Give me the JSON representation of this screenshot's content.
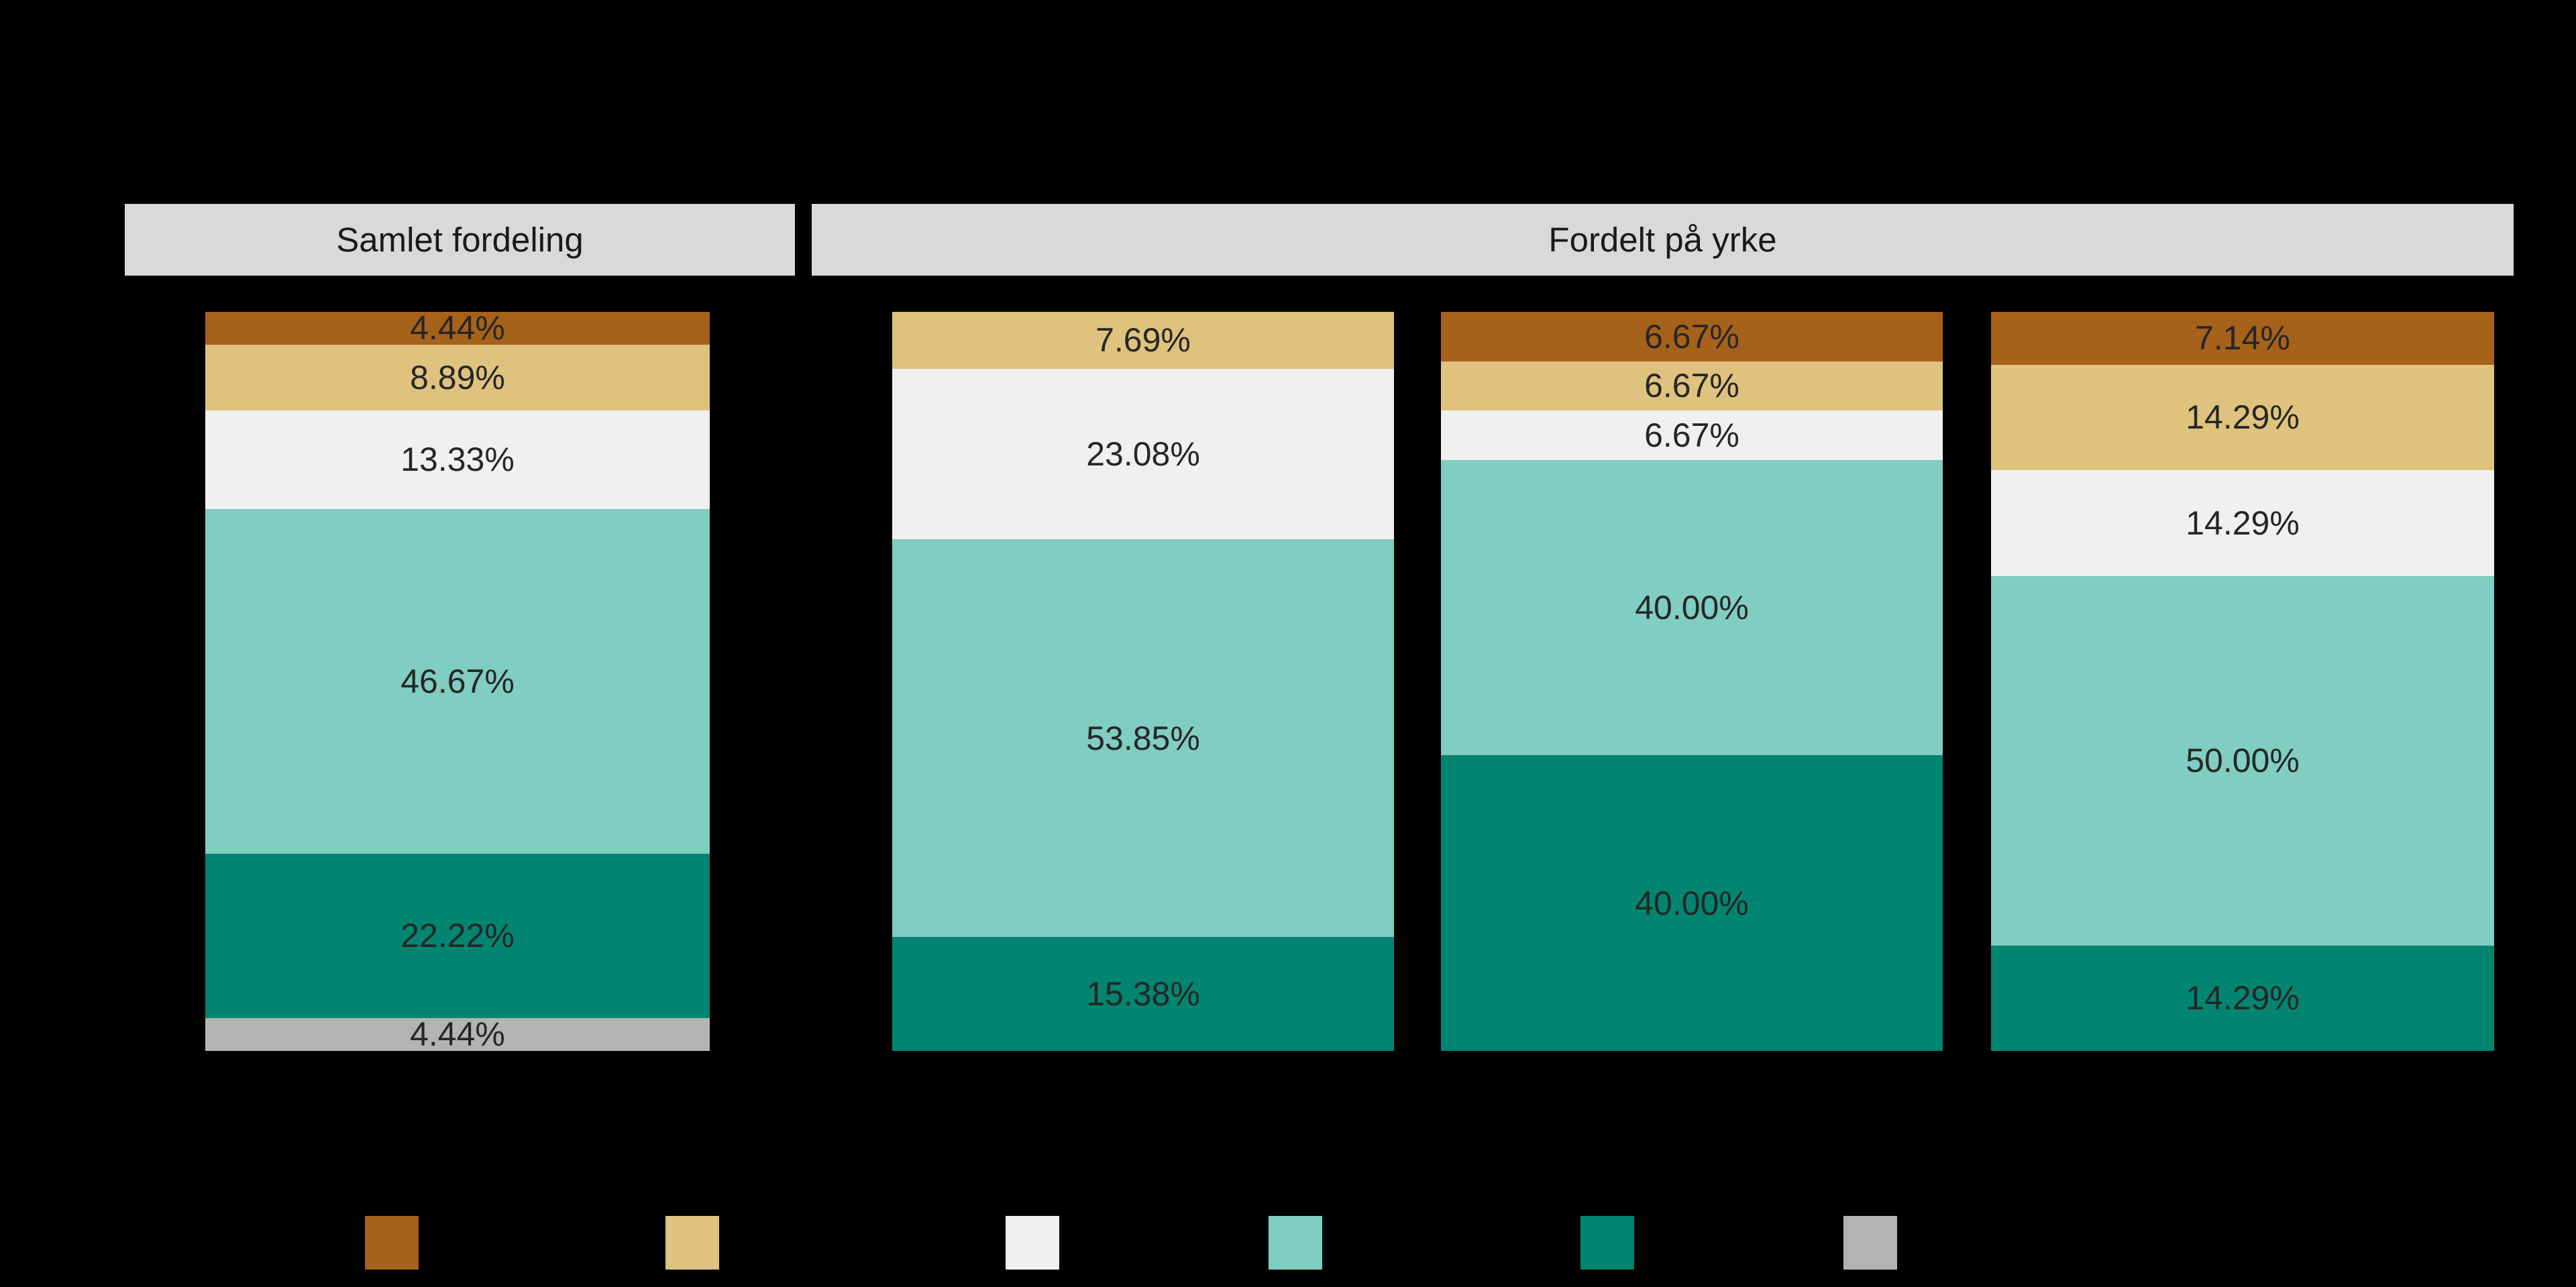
{
  "page": {
    "background_color": "#000000"
  },
  "facet_header": {
    "left_label": "Samlet fordeling",
    "right_label": "Fordelt på yrke",
    "strip_background": "#d9d9d9",
    "strip_text_color": "#1a1a1a"
  },
  "chart_data": {
    "type": "bar",
    "variant": "stacked-100-percent-vertical",
    "ylim": [
      0,
      100
    ],
    "grid": false,
    "axis_tick_labels_visible": false,
    "label_color": "#262626",
    "palette": [
      "#a6611a",
      "#dfc27d",
      "#f0f0f0",
      "#80cdc1",
      "#018571",
      "#b3b3b3"
    ],
    "facets": [
      {
        "title": "Samlet fordeling",
        "bar_indices": [
          0
        ]
      },
      {
        "title": "Fordelt på yrke",
        "bar_indices": [
          1,
          2,
          3
        ]
      }
    ],
    "bars": [
      {
        "facet": "Samlet fordeling",
        "segments": [
          {
            "label": "4.44%",
            "value": 4.44,
            "color": "#a6611a"
          },
          {
            "label": "8.89%",
            "value": 8.89,
            "color": "#dfc27d"
          },
          {
            "label": "13.33%",
            "value": 13.33,
            "color": "#f0f0f0"
          },
          {
            "label": "46.67%",
            "value": 46.67,
            "color": "#80cdc1"
          },
          {
            "label": "22.22%",
            "value": 22.22,
            "color": "#018571"
          },
          {
            "label": "4.44%",
            "value": 4.44,
            "color": "#b3b3b3"
          }
        ]
      },
      {
        "facet": "Fordelt på yrke",
        "segments": [
          {
            "label": "7.69%",
            "value": 7.69,
            "color": "#dfc27d"
          },
          {
            "label": "23.08%",
            "value": 23.08,
            "color": "#f0f0f0"
          },
          {
            "label": "53.85%",
            "value": 53.85,
            "color": "#80cdc1"
          },
          {
            "label": "15.38%",
            "value": 15.38,
            "color": "#018571"
          }
        ]
      },
      {
        "facet": "Fordelt på yrke",
        "segments": [
          {
            "label": "6.67%",
            "value": 6.67,
            "color": "#a6611a"
          },
          {
            "label": "6.67%",
            "value": 6.67,
            "color": "#dfc27d"
          },
          {
            "label": "6.67%",
            "value": 6.67,
            "color": "#f0f0f0"
          },
          {
            "label": "40.00%",
            "value": 40.0,
            "color": "#80cdc1"
          },
          {
            "label": "40.00%",
            "value": 40.0,
            "color": "#018571"
          }
        ]
      },
      {
        "facet": "Fordelt på yrke",
        "segments": [
          {
            "label": "7.14%",
            "value": 7.14,
            "color": "#a6611a"
          },
          {
            "label": "14.29%",
            "value": 14.29,
            "color": "#dfc27d"
          },
          {
            "label": "14.29%",
            "value": 14.29,
            "color": "#f0f0f0"
          },
          {
            "label": "50.00%",
            "value": 50.0,
            "color": "#80cdc1"
          },
          {
            "label": "14.29%",
            "value": 14.29,
            "color": "#018571"
          }
        ]
      }
    ],
    "legend": {
      "position": "bottom",
      "labels_visible": false,
      "keys": [
        {
          "name": "legend-color-1",
          "color": "#a6611a"
        },
        {
          "name": "legend-color-2",
          "color": "#dfc27d"
        },
        {
          "name": "legend-color-3",
          "color": "#f0f0f0"
        },
        {
          "name": "legend-color-4",
          "color": "#80cdc1"
        },
        {
          "name": "legend-color-5",
          "color": "#018571"
        },
        {
          "name": "legend-color-6",
          "color": "#b3b3b3"
        }
      ]
    }
  }
}
